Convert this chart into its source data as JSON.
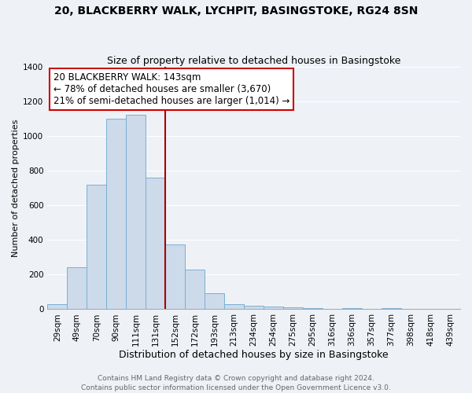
{
  "title": "20, BLACKBERRY WALK, LYCHPIT, BASINGSTOKE, RG24 8SN",
  "subtitle": "Size of property relative to detached houses in Basingstoke",
  "xlabel": "Distribution of detached houses by size in Basingstoke",
  "ylabel": "Number of detached properties",
  "categories": [
    "29sqm",
    "49sqm",
    "70sqm",
    "90sqm",
    "111sqm",
    "131sqm",
    "152sqm",
    "172sqm",
    "193sqm",
    "213sqm",
    "234sqm",
    "254sqm",
    "275sqm",
    "295sqm",
    "316sqm",
    "336sqm",
    "357sqm",
    "377sqm",
    "398sqm",
    "418sqm",
    "439sqm"
  ],
  "bar_heights": [
    30,
    240,
    720,
    1100,
    1120,
    760,
    375,
    230,
    90,
    30,
    20,
    15,
    10,
    5,
    0,
    5,
    0,
    5,
    0,
    0,
    0
  ],
  "bar_color": "#cddaea",
  "bar_edgecolor": "#7aafd4",
  "vline_x_index": 5.5,
  "vline_color": "#aa0000",
  "annotation_text": "20 BLACKBERRY WALK: 143sqm\n← 78% of detached houses are smaller (3,670)\n21% of semi-detached houses are larger (1,014) →",
  "annotation_box_edgecolor": "#cc0000",
  "annotation_box_facecolor": "#ffffff",
  "ylim": [
    0,
    1400
  ],
  "yticks": [
    0,
    200,
    400,
    600,
    800,
    1000,
    1200,
    1400
  ],
  "footer_line1": "Contains HM Land Registry data © Crown copyright and database right 2024.",
  "footer_line2": "Contains public sector information licensed under the Open Government Licence v3.0.",
  "title_fontsize": 10,
  "subtitle_fontsize": 9,
  "xlabel_fontsize": 9,
  "ylabel_fontsize": 8,
  "tick_fontsize": 7.5,
  "annotation_fontsize": 8.5,
  "footer_fontsize": 6.5,
  "background_color": "#eef2f7",
  "grid_color": "#ffffff",
  "spine_color": "#aaaaaa"
}
